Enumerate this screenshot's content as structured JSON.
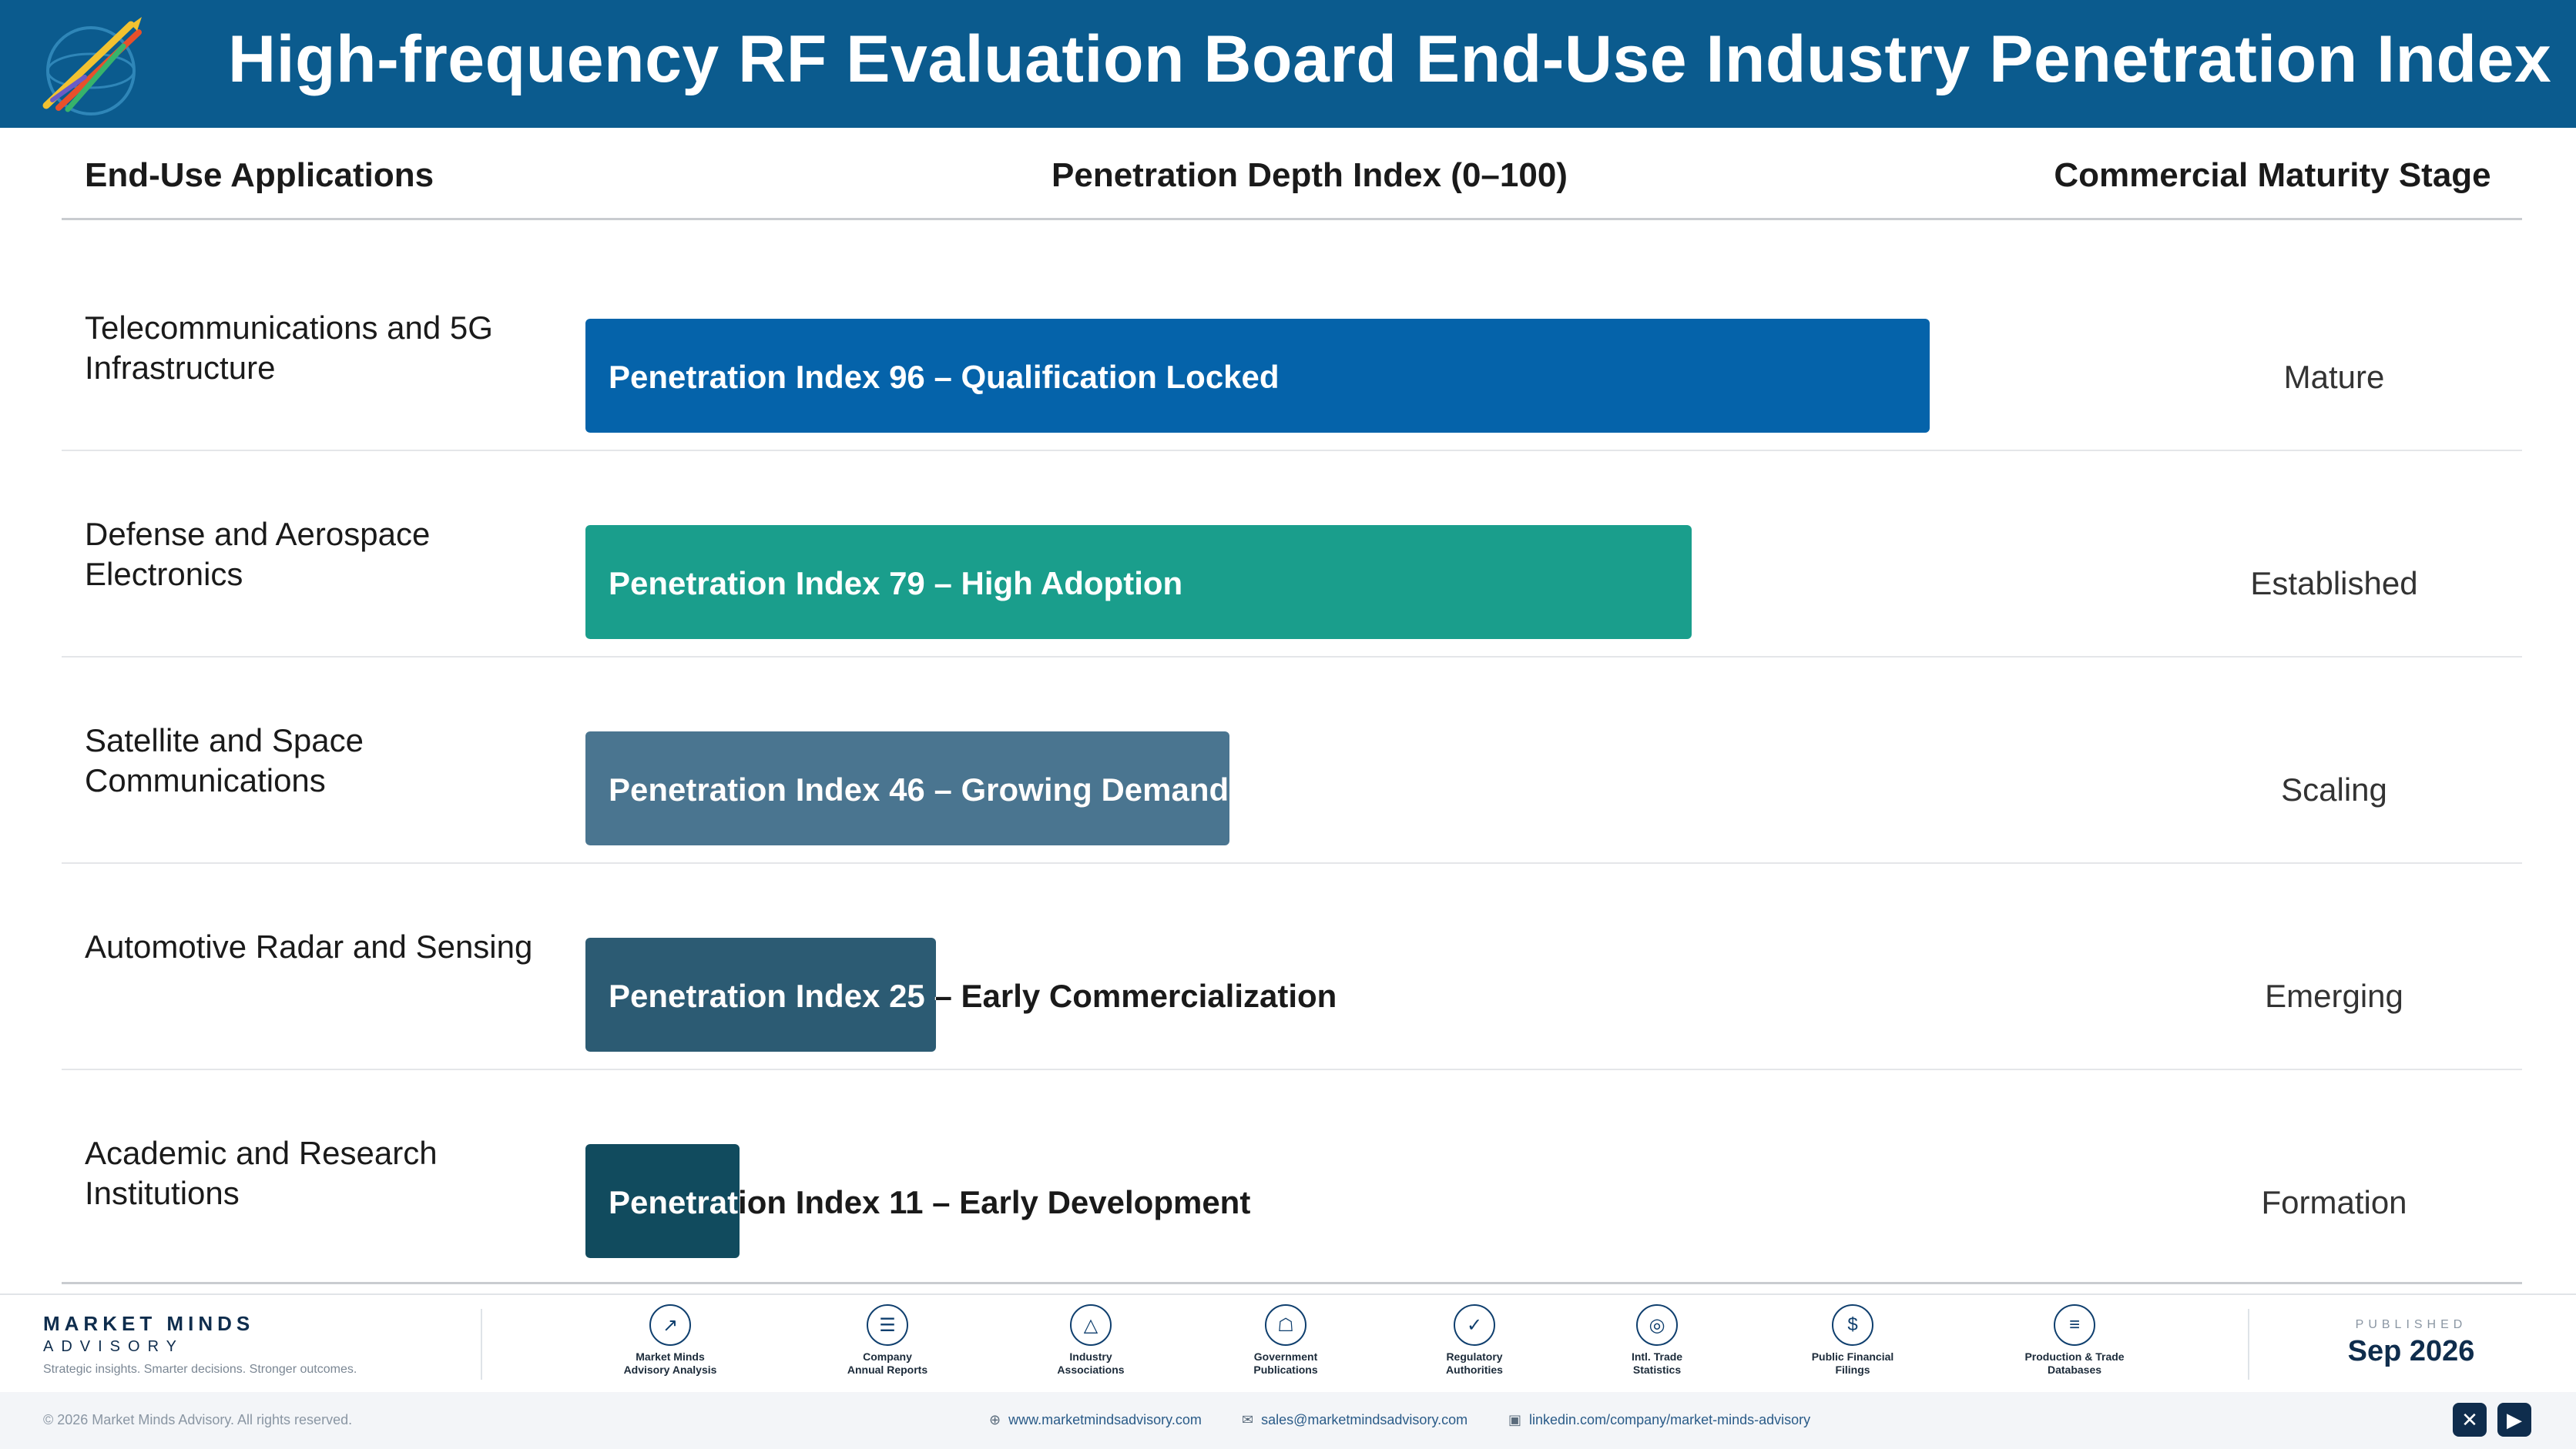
{
  "header": {
    "title": "High-frequency RF Evaluation Board End-Use Industry Penetration Index"
  },
  "columns": {
    "applications": "End-Use Applications",
    "depth": "Penetration Depth Index (0–100)",
    "stage": "Commercial Maturity Stage"
  },
  "chart_data": {
    "type": "bar",
    "orientation": "horizontal",
    "title": "High-frequency RF Evaluation Board End-Use Industry Penetration Index",
    "xlabel": "Penetration Depth Index (0–100)",
    "ylabel": "End-Use Applications",
    "xlim": [
      0,
      100
    ],
    "categories": [
      "Telecommunications and 5G Infrastructure",
      "Defense and Aerospace Electronics",
      "Satellite and Space Communications",
      "Automotive Radar and Sensing",
      "Academic and Research Institutions"
    ],
    "values": [
      96,
      79,
      46,
      25,
      11
    ],
    "bar_labels": [
      "Penetration Index 96 – Qualification Locked",
      "Penetration Index 79 – High Adoption",
      "Penetration Index 46 – Growing Demand",
      "Penetration Index 25 – Early Commercialization",
      "Penetration Index 11 – Early Development"
    ],
    "stages": [
      "Mature",
      "Established",
      "Scaling",
      "Emerging",
      "Formation"
    ],
    "colors": [
      "#0563aa",
      "#1a9e8c",
      "#4a7590",
      "#2c5b73",
      "#114b5e"
    ],
    "grid": false
  },
  "footer": {
    "brand_name": "MARKET MINDS",
    "brand_sub": "ADVISORY",
    "tagline": "Strategic insights. Smarter decisions. Stronger outcomes.",
    "sources": [
      {
        "icon": "chart-line-icon",
        "label1": "Market Minds",
        "label2": "Advisory Analysis"
      },
      {
        "icon": "document-icon",
        "label1": "Company",
        "label2": "Annual Reports"
      },
      {
        "icon": "network-icon",
        "label1": "Industry",
        "label2": "Associations"
      },
      {
        "icon": "bank-icon",
        "label1": "Government",
        "label2": "Publications"
      },
      {
        "icon": "shield-icon",
        "label1": "Regulatory",
        "label2": "Authorities"
      },
      {
        "icon": "globe-icon",
        "label1": "Intl. Trade",
        "label2": "Statistics"
      },
      {
        "icon": "dollar-icon",
        "label1": "Public Financial",
        "label2": "Filings"
      },
      {
        "icon": "database-icon",
        "label1": "Production & Trade",
        "label2": "Databases"
      }
    ],
    "published_label": "PUBLISHED",
    "published_date": "Sep 2026",
    "copyright": "© 2026 Market Minds Advisory. All rights reserved.",
    "website": "www.marketmindsadvisory.com",
    "email": "sales@marketmindsadvisory.com",
    "linkedin": "linkedin.com/company/market-minds-advisory"
  }
}
